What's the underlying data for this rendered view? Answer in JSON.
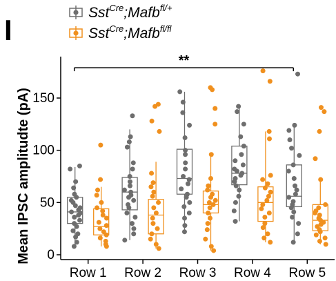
{
  "panel_label": "I",
  "colors": {
    "control": "#6e6e6e",
    "mutant": "#f0901e",
    "axis": "#000000"
  },
  "legend": {
    "entries": [
      {
        "base1": "Sst",
        "sup1": "Cre",
        "base2": ";Mafb",
        "sup2": "fl/+",
        "color": "#6e6e6e"
      },
      {
        "base1": "Sst",
        "sup1": "Cre",
        "base2": ";Mafb",
        "sup2": "fl/fl",
        "color": "#f0901e"
      }
    ]
  },
  "significance": "**",
  "chart_data": {
    "type": "box-dot",
    "ylabel": "Mean IPSC amplitudte (pA)",
    "xlabel": "",
    "ylim": [
      0,
      190
    ],
    "yticks": [
      0,
      50,
      100,
      150
    ],
    "categories": [
      "Row 1",
      "Row 2",
      "Row 3",
      "Row 4",
      "Row 5"
    ],
    "series": [
      {
        "color": "#6e6e6e",
        "boxes": [
          {
            "whisker_low": 8,
            "q1": 30,
            "median": 41,
            "q3": 55,
            "whisker_high": 84
          },
          {
            "whisker_low": 14,
            "q1": 43,
            "median": 60,
            "q3": 74,
            "whisker_high": 120
          },
          {
            "whisker_low": 22,
            "q1": 58,
            "median": 73,
            "q3": 101,
            "whisker_high": 156
          },
          {
            "whisker_low": 32,
            "q1": 67,
            "median": 78,
            "q3": 104,
            "whisker_high": 142
          },
          {
            "whisker_low": 12,
            "q1": 46,
            "median": 56,
            "q3": 86,
            "whisker_high": 124
          }
        ],
        "points": [
          [
            85,
            82,
            70,
            64,
            58,
            55,
            52,
            50,
            47,
            45,
            43,
            41,
            40,
            38,
            36,
            33,
            30,
            27,
            23,
            20,
            17,
            12,
            8
          ],
          [
            133,
            113,
            108,
            103,
            88,
            82,
            75,
            70,
            66,
            62,
            60,
            57,
            55,
            52,
            48,
            45,
            40,
            36,
            30,
            25,
            20,
            14
          ],
          [
            156,
            146,
            136,
            124,
            112,
            100,
            96,
            88,
            82,
            75,
            72,
            68,
            63,
            58,
            55,
            50,
            46,
            40,
            35,
            28,
            22
          ],
          [
            142,
            137,
            125,
            113,
            104,
            96,
            90,
            86,
            82,
            80,
            78,
            76,
            73,
            70,
            66,
            62,
            56,
            50,
            42,
            32
          ],
          [
            173,
            124,
            119,
            110,
            102,
            95,
            86,
            80,
            73,
            66,
            62,
            58,
            55,
            51,
            48,
            45,
            41,
            36,
            30,
            20,
            12
          ]
        ]
      },
      {
        "color": "#f0901e",
        "boxes": [
          {
            "whisker_low": 8,
            "q1": 19,
            "median": 27,
            "q3": 44,
            "whisker_high": 65
          },
          {
            "whisker_low": 6,
            "q1": 20,
            "median": 38,
            "q3": 53,
            "whisker_high": 89
          },
          {
            "whisker_low": 4,
            "q1": 40,
            "median": 48,
            "q3": 61,
            "whisker_high": 97
          },
          {
            "whisker_low": 12,
            "q1": 32,
            "median": 50,
            "q3": 65,
            "whisker_high": 118
          },
          {
            "whisker_low": 10,
            "q1": 23,
            "median": 33,
            "q3": 48,
            "whisker_high": 72
          }
        ],
        "points": [
          [
            105,
            72,
            62,
            57,
            50,
            45,
            42,
            38,
            35,
            31,
            28,
            25,
            22,
            19,
            16,
            13,
            10,
            8
          ],
          [
            144,
            142,
            128,
            118,
            78,
            69,
            65,
            60,
            56,
            50,
            45,
            40,
            35,
            30,
            25,
            20,
            15,
            10,
            6
          ],
          [
            160,
            158,
            140,
            125,
            96,
            73,
            66,
            62,
            58,
            55,
            52,
            50,
            48,
            45,
            40,
            35,
            30,
            24,
            15,
            8,
            4
          ],
          [
            176,
            166,
            118,
            111,
            76,
            72,
            68,
            64,
            60,
            56,
            52,
            48,
            44,
            40,
            36,
            30,
            26,
            20,
            16,
            12
          ],
          [
            141,
            137,
            118,
            92,
            72,
            48,
            45,
            42,
            40,
            38,
            35,
            33,
            31,
            29,
            27,
            24,
            22,
            19,
            16,
            13,
            10
          ]
        ]
      }
    ],
    "legend_position": "top-left"
  }
}
